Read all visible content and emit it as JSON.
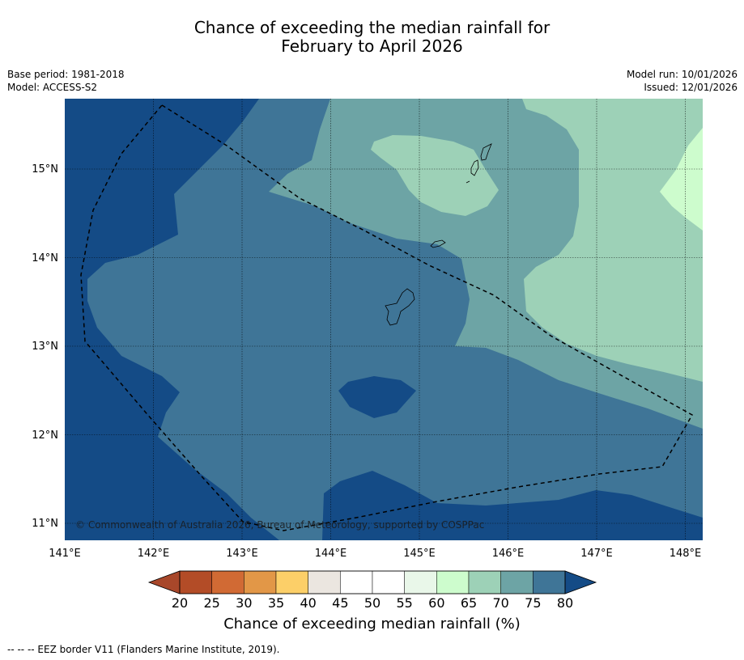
{
  "header": {
    "title_line1": "Chance of exceeding the median rainfall for",
    "title_line2": "February to April 2026",
    "base_period": "Base period: 1981-2018",
    "model": "Model: ACCESS-S2",
    "model_run": "Model run: 10/01/2026",
    "issued": "Issued: 12/01/2026"
  },
  "map": {
    "region": "Guam and Northern Mariana Islands",
    "lat_ticks": [
      "15°N",
      "14°N",
      "13°N",
      "12°N",
      "11°N"
    ],
    "lon_ticks": [
      "141°E",
      "142°E",
      "143°E",
      "144°E",
      "145°E",
      "146°E",
      "147°E",
      "148°E"
    ],
    "copyright": "© Commonwealth of Australia 2026, Bureau of Meteorology, supported by COSPPac",
    "dominant_colors": {
      "gt80": "#144b86",
      "p75_80": "#3f7597",
      "p70_75": "#6da4a5",
      "p65_70": "#9dd1b7",
      "p60_65": "#cdfccd",
      "land_outline": "#000000",
      "eez_border": "#000000"
    }
  },
  "colorbar": {
    "ticks": [
      "20",
      "25",
      "30",
      "35",
      "40",
      "45",
      "50",
      "55",
      "60",
      "65",
      "70",
      "75",
      "80"
    ],
    "colors": [
      "#a8472a",
      "#b34c27",
      "#d16a34",
      "#e29747",
      "#fccf68",
      "#ebe6e0",
      "#ffffff",
      "#ffffff",
      "#e9f7e9",
      "#cdfccd",
      "#9dd1b7",
      "#6da4a5",
      "#3f7597",
      "#144b86"
    ],
    "title": "Chance of exceeding median rainfall (%)"
  },
  "footnote": "--  --  -- EEZ border V11 (Flanders Marine Institute, 2019)."
}
